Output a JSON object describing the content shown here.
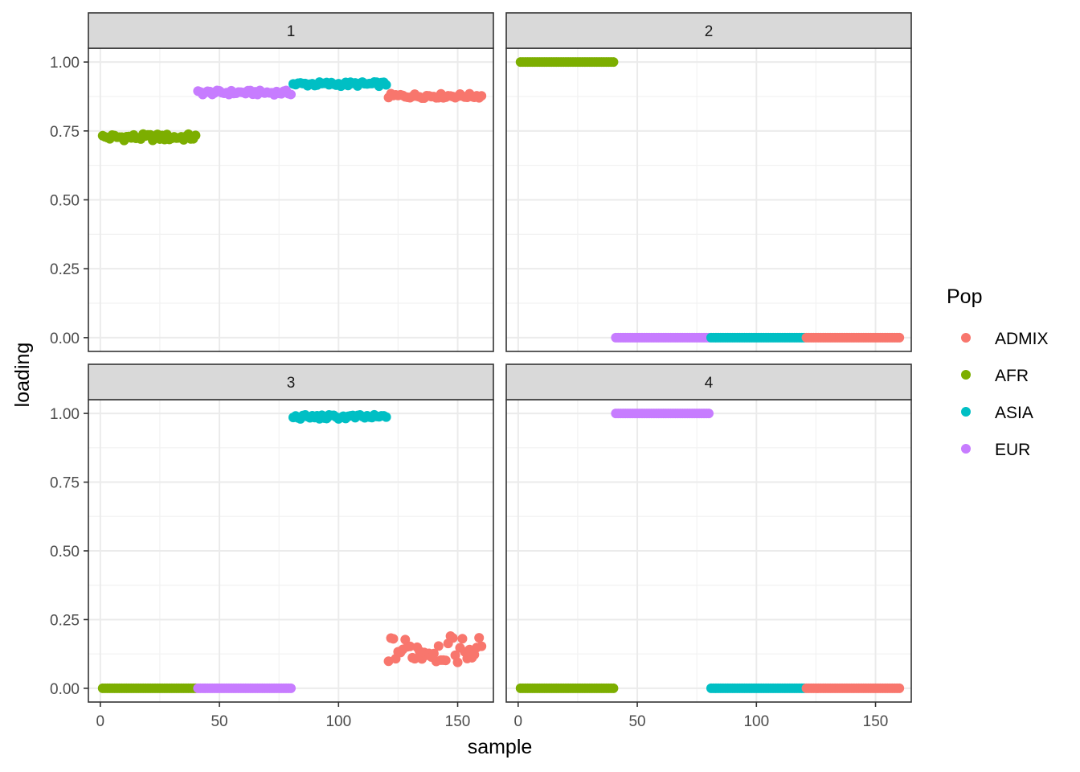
{
  "chart_data": {
    "type": "scatter",
    "facet_layout": "2x2",
    "xlabel": "sample",
    "ylabel": "loading",
    "xlim": [
      -5,
      165
    ],
    "ylim": [
      -0.05,
      1.05
    ],
    "x_ticks": [
      0,
      50,
      100,
      150
    ],
    "x_tick_labels": [
      "0",
      "50",
      "100",
      "150"
    ],
    "y_ticks": [
      0,
      0.25,
      0.5,
      0.75,
      1.0
    ],
    "y_tick_labels": [
      "0.00",
      "0.25",
      "0.50",
      "0.75",
      "1.00"
    ],
    "grid": true,
    "legend": {
      "title": "Pop",
      "position": "right",
      "entries": [
        {
          "name": "ADMIX",
          "color": "#F8766D"
        },
        {
          "name": "AFR",
          "color": "#7CAE00"
        },
        {
          "name": "ASIA",
          "color": "#00BFC4"
        },
        {
          "name": "EUR",
          "color": "#C77CFF"
        }
      ]
    },
    "series_ranges": {
      "AFR": [
        1,
        40
      ],
      "EUR": [
        41,
        80
      ],
      "ASIA": [
        81,
        120
      ],
      "ADMIX": [
        121,
        160
      ]
    },
    "panels": [
      {
        "strip_label": "1",
        "series": [
          {
            "name": "AFR",
            "y_mean": 0.727,
            "y_spread": 0.012
          },
          {
            "name": "EUR",
            "y_mean": 0.889,
            "y_spread": 0.008
          },
          {
            "name": "ASIA",
            "y_mean": 0.92,
            "y_spread": 0.008
          },
          {
            "name": "ADMIX",
            "y_mean": 0.877,
            "y_spread": 0.008
          }
        ]
      },
      {
        "strip_label": "2",
        "series": [
          {
            "name": "AFR",
            "y_mean": 1.0,
            "y_spread": 0.0
          },
          {
            "name": "EUR",
            "y_mean": 0.0,
            "y_spread": 0.0
          },
          {
            "name": "ASIA",
            "y_mean": 0.0,
            "y_spread": 0.0
          },
          {
            "name": "ADMIX",
            "y_mean": 0.0,
            "y_spread": 0.0
          }
        ]
      },
      {
        "strip_label": "3",
        "series": [
          {
            "name": "AFR",
            "y_mean": 0.0,
            "y_spread": 0.0
          },
          {
            "name": "EUR",
            "y_mean": 0.0,
            "y_spread": 0.0
          },
          {
            "name": "ASIA",
            "y_mean": 0.987,
            "y_spread": 0.008
          },
          {
            "name": "ADMIX",
            "y_mean": 0.14,
            "y_spread": 0.05
          }
        ]
      },
      {
        "strip_label": "4",
        "series": [
          {
            "name": "AFR",
            "y_mean": 0.0,
            "y_spread": 0.0
          },
          {
            "name": "EUR",
            "y_mean": 1.0,
            "y_spread": 0.0
          },
          {
            "name": "ASIA",
            "y_mean": 0.0,
            "y_spread": 0.0
          },
          {
            "name": "ADMIX",
            "y_mean": 0.0,
            "y_spread": 0.0
          }
        ]
      }
    ]
  }
}
